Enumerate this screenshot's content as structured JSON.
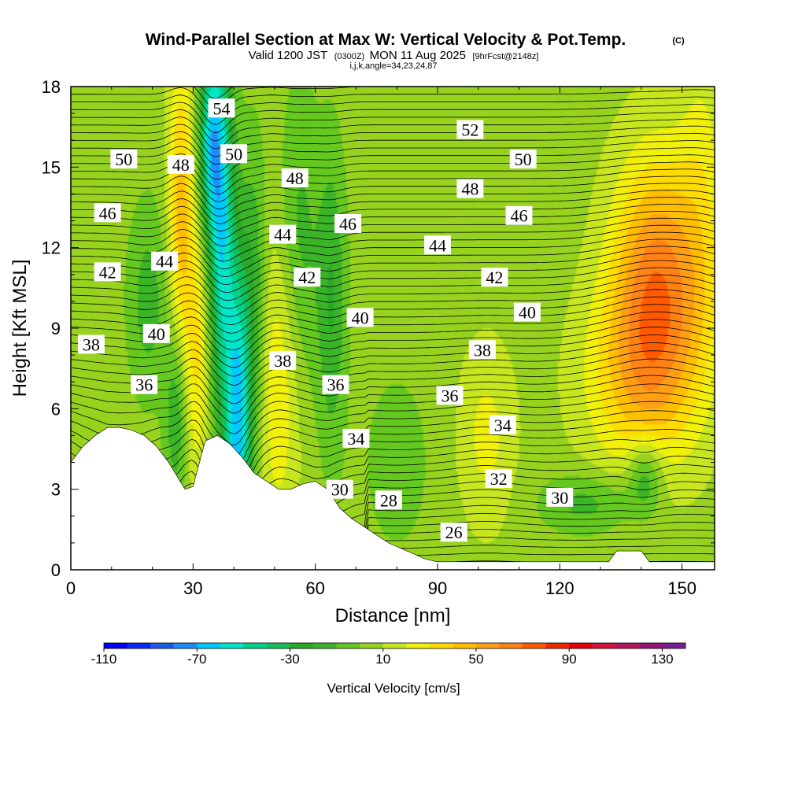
{
  "header": {
    "title": "Wind-Parallel Section at Max W: Vertical Velocity & Pot.Temp.",
    "copyright": "(C)",
    "subtitle_main": "Valid 1200 JST",
    "subtitle_utc": "(0300Z)",
    "subtitle_date": "MON 11 Aug 2025",
    "subtitle_fcst": "[9hrFcst@2148z]",
    "indices": "i,j,k,angle=34,23,24,87"
  },
  "chart_data": {
    "type": "heatmap",
    "xlabel": "Distance [nm]",
    "ylabel": "Height [Kft MSL]",
    "xlim": [
      0,
      158
    ],
    "ylim": [
      0,
      18
    ],
    "x_ticks": [
      "0",
      "30",
      "60",
      "90",
      "120",
      "150"
    ],
    "y_ticks": [
      "0",
      "3",
      "6",
      "9",
      "12",
      "15",
      "18"
    ],
    "colorbar": {
      "label": "Vertical Velocity [cm/s]",
      "tick_labels": [
        "-110",
        "-70",
        "-30",
        "10",
        "50",
        "90",
        "130"
      ],
      "levels": [
        -110,
        -100,
        -90,
        -80,
        -70,
        -60,
        -50,
        -40,
        -30,
        -20,
        -10,
        0,
        10,
        20,
        30,
        40,
        50,
        60,
        70,
        80,
        90,
        100,
        110,
        120,
        130,
        140
      ],
      "colors": [
        "#0000f0",
        "#0a28f5",
        "#1e5ae6",
        "#1e8cff",
        "#00c8ff",
        "#00e6c8",
        "#00d28c",
        "#14be5a",
        "#28aa28",
        "#3cb428",
        "#64c81e",
        "#96d21e",
        "#c8e61e",
        "#f0f00a",
        "#ffdc00",
        "#ffbe00",
        "#ffa014",
        "#ff8214",
        "#ff5a00",
        "#f02800",
        "#e6000a",
        "#d2143c",
        "#b4145a",
        "#961478",
        "#781e96"
      ]
    },
    "terrain_profile": {
      "x": [
        0,
        3,
        6,
        9,
        12,
        15,
        18,
        21,
        24,
        26,
        28,
        30,
        33,
        36,
        39,
        42,
        45,
        48,
        51,
        54,
        57,
        60,
        63,
        66,
        69,
        72,
        75,
        78,
        81,
        84,
        87,
        90,
        93,
        96,
        132,
        134,
        137,
        140,
        142,
        158
      ],
      "y": [
        4.0,
        4.6,
        5.0,
        5.3,
        5.3,
        5.2,
        5.0,
        4.6,
        4.0,
        3.5,
        3.0,
        3.1,
        4.8,
        5.0,
        4.7,
        4.2,
        3.6,
        3.3,
        3.0,
        3.0,
        3.2,
        3.3,
        3.0,
        2.3,
        1.9,
        1.6,
        1.3,
        1.0,
        0.8,
        0.6,
        0.4,
        0.3,
        0.3,
        0.3,
        0.3,
        0.7,
        0.7,
        0.7,
        0.3,
        0.3
      ]
    },
    "w_features": [
      {
        "x": 41,
        "y": 5,
        "sx": 2.2,
        "sy": 4.5,
        "w": -70
      },
      {
        "x": 37,
        "y": 13,
        "sx": 2.2,
        "sy": 5.0,
        "w": -60
      },
      {
        "x": 34,
        "y": 16,
        "sx": 2.0,
        "sy": 2.5,
        "w": -50
      },
      {
        "x": 45,
        "y": 10,
        "sx": 2.2,
        "sy": 4.0,
        "w": -25
      },
      {
        "x": 26,
        "y": 6,
        "sx": 2.0,
        "sy": 2.5,
        "w": -30
      },
      {
        "x": 19,
        "y": 10,
        "sx": 3.5,
        "sy": 2.5,
        "w": -20
      },
      {
        "x": 56,
        "y": 12,
        "sx": 3.5,
        "sy": 4.0,
        "w": -20
      },
      {
        "x": 64,
        "y": 10,
        "sx": 2.5,
        "sy": 4.0,
        "w": -25
      },
      {
        "x": 80,
        "y": 4,
        "sx": 6.0,
        "sy": 2.5,
        "w": -10
      },
      {
        "x": 127,
        "y": 2.5,
        "sx": 8.0,
        "sy": 0.8,
        "w": -20
      },
      {
        "x": 141,
        "y": 3.5,
        "sx": 3.0,
        "sy": 1.0,
        "w": -30
      },
      {
        "x": 144,
        "y": 10.5,
        "sx": 8.0,
        "sy": 3.5,
        "w": 60
      },
      {
        "x": 138,
        "y": 7,
        "sx": 10.0,
        "sy": 2.5,
        "w": 25
      },
      {
        "x": 27,
        "y": 13,
        "sx": 2.2,
        "sy": 4.5,
        "w": 40
      },
      {
        "x": 31,
        "y": 8,
        "sx": 2.0,
        "sy": 3.5,
        "w": 25
      },
      {
        "x": 51,
        "y": 7,
        "sx": 4.0,
        "sy": 4.0,
        "w": 25
      },
      {
        "x": 102,
        "y": 5,
        "sx": 5.0,
        "sy": 2.5,
        "w": 18
      },
      {
        "x": 155,
        "y": 14,
        "sx": 4.0,
        "sy": 5.0,
        "w": 15
      }
    ],
    "contour_label_points": [
      {
        "x": 37,
        "y": 17.2,
        "label": "54"
      },
      {
        "x": 98,
        "y": 16.4,
        "label": "52"
      },
      {
        "x": 13,
        "y": 15.3,
        "label": "50"
      },
      {
        "x": 40,
        "y": 15.5,
        "label": "50"
      },
      {
        "x": 111,
        "y": 15.3,
        "label": "50"
      },
      {
        "x": 27,
        "y": 15.1,
        "label": "48"
      },
      {
        "x": 55,
        "y": 14.6,
        "label": "48"
      },
      {
        "x": 98,
        "y": 14.2,
        "label": "48"
      },
      {
        "x": 9,
        "y": 13.3,
        "label": "46"
      },
      {
        "x": 68,
        "y": 12.9,
        "label": "46"
      },
      {
        "x": 110,
        "y": 13.2,
        "label": "46"
      },
      {
        "x": 52,
        "y": 12.5,
        "label": "44"
      },
      {
        "x": 90,
        "y": 12.1,
        "label": "44"
      },
      {
        "x": 23,
        "y": 11.5,
        "label": "44"
      },
      {
        "x": 9,
        "y": 11.1,
        "label": "42"
      },
      {
        "x": 58,
        "y": 10.9,
        "label": "42"
      },
      {
        "x": 104,
        "y": 10.9,
        "label": "42"
      },
      {
        "x": 71,
        "y": 9.4,
        "label": "40"
      },
      {
        "x": 112,
        "y": 9.6,
        "label": "40"
      },
      {
        "x": 21,
        "y": 8.8,
        "label": "40"
      },
      {
        "x": 5,
        "y": 8.4,
        "label": "38"
      },
      {
        "x": 52,
        "y": 7.8,
        "label": "38"
      },
      {
        "x": 101,
        "y": 8.2,
        "label": "38"
      },
      {
        "x": 18,
        "y": 6.9,
        "label": "36"
      },
      {
        "x": 65,
        "y": 6.9,
        "label": "36"
      },
      {
        "x": 93,
        "y": 6.5,
        "label": "36"
      },
      {
        "x": 106,
        "y": 5.4,
        "label": "34"
      },
      {
        "x": 70,
        "y": 4.9,
        "label": "34"
      },
      {
        "x": 105,
        "y": 3.4,
        "label": "32"
      },
      {
        "x": 66,
        "y": 3.0,
        "label": "30"
      },
      {
        "x": 120,
        "y": 2.7,
        "label": "30"
      },
      {
        "x": 78,
        "y": 2.6,
        "label": "28"
      },
      {
        "x": 94,
        "y": 1.4,
        "label": "26"
      }
    ]
  },
  "colors": {
    "background": "#ffffff",
    "contour_line": "#000000",
    "terrain": "#ffffff"
  }
}
